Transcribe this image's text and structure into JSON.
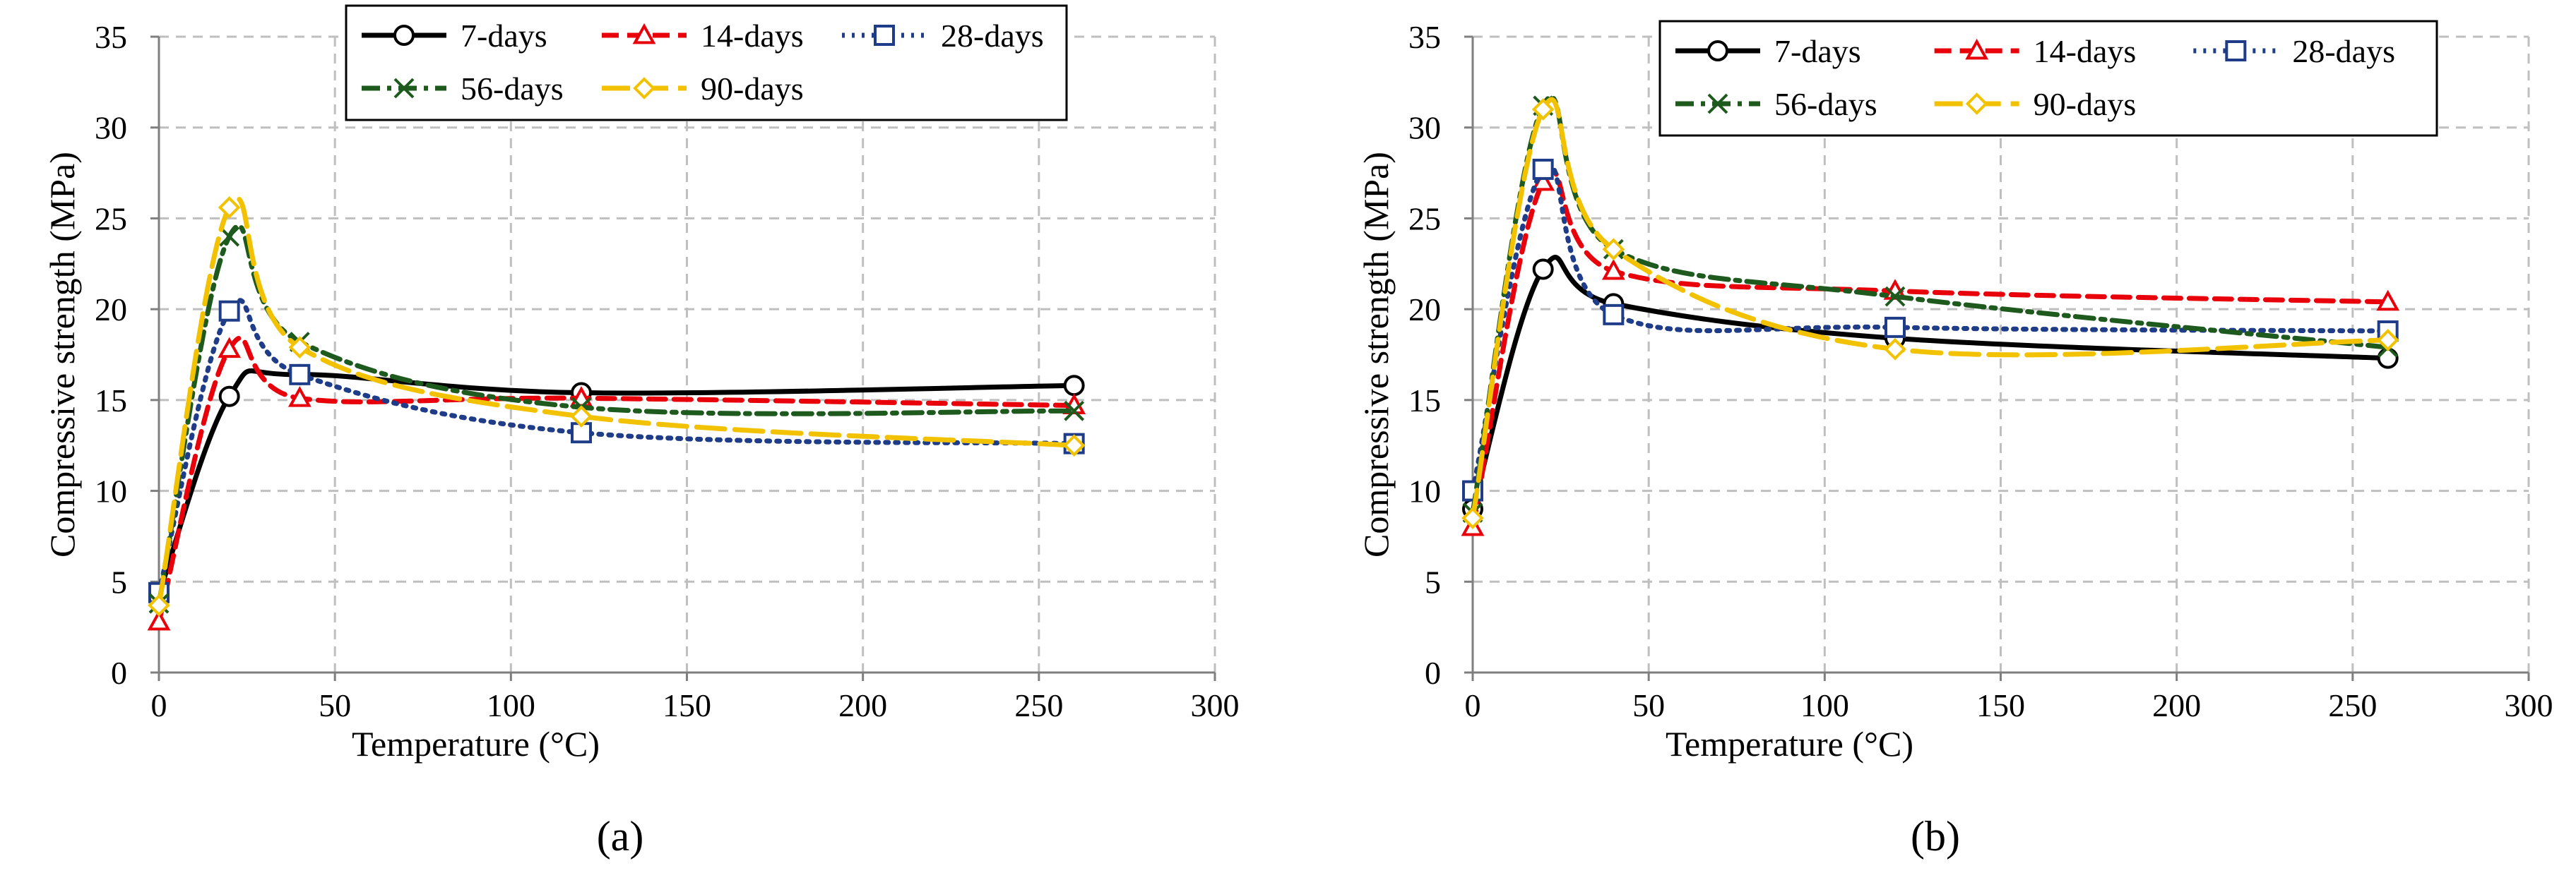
{
  "chart_data": [
    {
      "id": "a",
      "type": "line",
      "panel_label": "(a)",
      "title": "",
      "xlabel": "Temperature (°C)",
      "ylabel": "Compressive strength (MPa)",
      "xlim": [
        0,
        300
      ],
      "ylim": [
        0,
        35
      ],
      "xticks": [
        0,
        50,
        100,
        150,
        200,
        250,
        300
      ],
      "yticks": [
        0,
        5,
        10,
        15,
        20,
        25,
        30,
        35
      ],
      "grid": true,
      "legend_position": "top",
      "x": [
        0,
        20,
        40,
        120,
        260
      ],
      "series": [
        {
          "name": "7-days",
          "marker": "circle",
          "color": "#000000",
          "dash": "solid",
          "values": [
            4.3,
            15.2,
            16.4,
            15.4,
            15.8
          ]
        },
        {
          "name": "14-days",
          "marker": "triangle",
          "color": "#e8000b",
          "dash": "dash",
          "values": [
            2.8,
            17.8,
            15.1,
            15.1,
            14.7
          ]
        },
        {
          "name": "28-days",
          "marker": "square",
          "color": "#1f3c88",
          "dash": "dot",
          "values": [
            4.4,
            19.9,
            16.4,
            13.2,
            12.6
          ]
        },
        {
          "name": "56-days",
          "marker": "x",
          "color": "#1e5a1e",
          "dash": "dashdot",
          "values": [
            3.8,
            24.0,
            18.2,
            14.6,
            14.4
          ]
        },
        {
          "name": "90-days",
          "marker": "diamond",
          "color": "#f2c200",
          "dash": "longdash",
          "values": [
            3.7,
            25.6,
            17.9,
            14.1,
            12.5
          ]
        }
      ]
    },
    {
      "id": "b",
      "type": "line",
      "panel_label": "(b)",
      "title": "",
      "xlabel": "Temperature (°C)",
      "ylabel": "Compressive strength (MPa)",
      "xlim": [
        0,
        300
      ],
      "ylim": [
        0,
        35
      ],
      "xticks": [
        0,
        50,
        100,
        150,
        200,
        250,
        300
      ],
      "yticks": [
        0,
        5,
        10,
        15,
        20,
        25,
        30,
        35
      ],
      "grid": true,
      "legend_position": "top",
      "x": [
        0,
        20,
        40,
        120,
        260
      ],
      "series": [
        {
          "name": "7-days",
          "marker": "circle",
          "color": "#000000",
          "dash": "solid",
          "values": [
            9.0,
            22.2,
            20.3,
            18.4,
            17.3
          ]
        },
        {
          "name": "14-days",
          "marker": "triangle",
          "color": "#e8000b",
          "dash": "dash",
          "values": [
            8.0,
            27.0,
            22.1,
            21.0,
            20.4
          ]
        },
        {
          "name": "28-days",
          "marker": "square",
          "color": "#1f3c88",
          "dash": "dot",
          "values": [
            10.0,
            27.7,
            19.7,
            19.0,
            18.8
          ]
        },
        {
          "name": "56-days",
          "marker": "x",
          "color": "#1e5a1e",
          "dash": "dashdot",
          "values": [
            8.8,
            31.2,
            23.3,
            20.7,
            17.9
          ]
        },
        {
          "name": "90-days",
          "marker": "diamond",
          "color": "#f2c200",
          "dash": "longdash",
          "values": [
            8.5,
            31.0,
            23.3,
            17.8,
            18.3
          ]
        }
      ]
    }
  ]
}
